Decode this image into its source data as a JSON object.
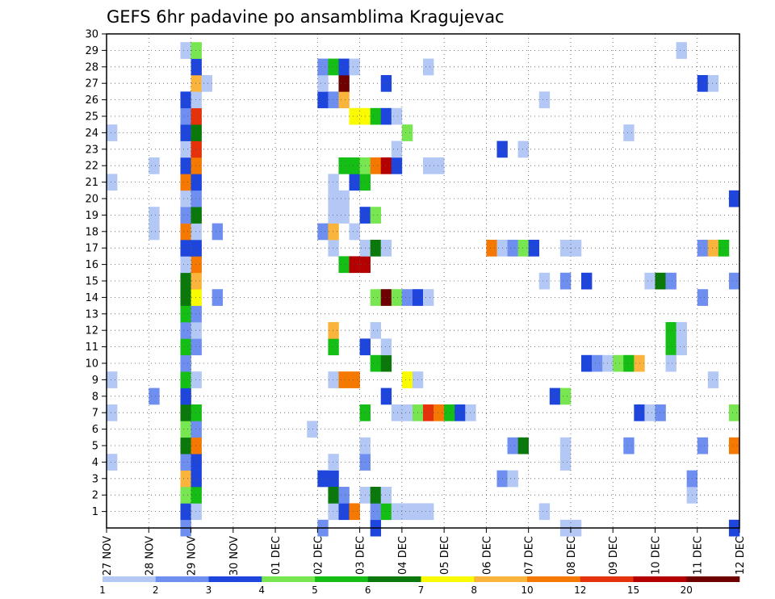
{
  "chart_data": {
    "type": "heatmap",
    "title": "GEFS 6hr padavine po ansamblima Kragujevac",
    "xlabel": "",
    "ylabel": "",
    "x_tick_labels": [
      "27 NOV",
      "28 NOV",
      "29 NOV",
      "30 NOV",
      "01 DEC",
      "02 DEC",
      "03 DEC",
      "04 DEC",
      "05 DEC",
      "06 DEC",
      "07 DEC",
      "08 DEC",
      "09 DEC",
      "10 DEC",
      "11 DEC",
      "12 DEC"
    ],
    "y_tick_labels": [
      "1",
      "2",
      "3",
      "4",
      "5",
      "6",
      "7",
      "8",
      "9",
      "10",
      "11",
      "12",
      "13",
      "14",
      "15",
      "16",
      "17",
      "18",
      "19",
      "20",
      "21",
      "22",
      "23",
      "24",
      "25",
      "26",
      "27",
      "28",
      "29",
      "30"
    ],
    "x_range_steps": [
      0,
      60
    ],
    "y_range_members": [
      0,
      30
    ],
    "grid": "dotted",
    "colorbar": {
      "labels": [
        "1",
        "2",
        "3",
        "4",
        "5",
        "6",
        "7",
        "8",
        "10",
        "12",
        "15",
        "20"
      ],
      "colors": [
        "#b4c8f5",
        "#6e8ff0",
        "#1e46dc",
        "#78e650",
        "#14be14",
        "#0a780a",
        "#fafa00",
        "#fab43c",
        "#f57800",
        "#e6320a",
        "#b40000",
        "#6e0000"
      ]
    },
    "cells": [
      [
        7,
        0,
        2
      ],
      [
        7,
        1,
        3
      ],
      [
        8,
        1,
        1
      ],
      [
        7,
        2,
        4
      ],
      [
        8,
        2,
        5
      ],
      [
        7,
        3,
        8
      ],
      [
        8,
        3,
        3
      ],
      [
        7,
        4,
        2
      ],
      [
        8,
        4,
        3
      ],
      [
        7,
        5,
        6
      ],
      [
        8,
        5,
        9
      ],
      [
        7,
        6,
        4
      ],
      [
        8,
        6,
        2
      ],
      [
        7,
        7,
        6
      ],
      [
        8,
        7,
        5
      ],
      [
        7,
        8,
        3
      ],
      [
        7,
        9,
        5
      ],
      [
        8,
        9,
        1
      ],
      [
        7,
        10,
        2
      ],
      [
        7,
        11,
        5
      ],
      [
        8,
        11,
        2
      ],
      [
        7,
        12,
        2
      ],
      [
        8,
        12,
        1
      ],
      [
        7,
        13,
        5
      ],
      [
        8,
        13,
        2
      ],
      [
        7,
        14,
        6
      ],
      [
        8,
        14,
        7
      ],
      [
        7,
        15,
        6
      ],
      [
        8,
        15,
        8
      ],
      [
        8,
        16,
        9
      ],
      [
        7,
        16,
        1
      ],
      [
        7,
        17,
        3
      ],
      [
        8,
        17,
        3
      ],
      [
        7,
        18,
        9
      ],
      [
        8,
        18,
        1
      ],
      [
        7,
        19,
        2
      ],
      [
        8,
        19,
        6
      ],
      [
        7,
        20,
        1
      ],
      [
        8,
        20,
        2
      ],
      [
        7,
        21,
        9
      ],
      [
        8,
        21,
        3
      ],
      [
        7,
        22,
        3
      ],
      [
        8,
        22,
        9
      ],
      [
        7,
        23,
        1
      ],
      [
        8,
        23,
        10
      ],
      [
        7,
        24,
        3
      ],
      [
        8,
        24,
        6
      ],
      [
        7,
        25,
        2
      ],
      [
        8,
        25,
        10
      ],
      [
        7,
        26,
        3
      ],
      [
        8,
        26,
        1
      ],
      [
        8,
        27,
        8
      ],
      [
        9,
        27,
        1
      ],
      [
        8,
        28,
        3
      ],
      [
        7,
        29,
        1
      ],
      [
        8,
        29,
        4
      ],
      [
        0,
        24,
        1
      ],
      [
        0,
        21,
        1
      ],
      [
        0,
        9,
        1
      ],
      [
        0,
        7,
        1
      ],
      [
        0,
        4,
        1
      ],
      [
        4,
        22,
        1
      ],
      [
        4,
        19,
        1
      ],
      [
        4,
        18,
        1
      ],
      [
        4,
        8,
        2
      ],
      [
        10,
        18,
        2
      ],
      [
        10,
        14,
        2
      ],
      [
        19,
        6,
        1
      ],
      [
        20,
        0,
        2
      ],
      [
        20,
        3,
        3
      ],
      [
        21,
        3,
        3
      ],
      [
        20,
        18,
        2
      ],
      [
        20,
        26,
        3
      ],
      [
        20,
        27,
        1
      ],
      [
        20,
        28,
        2
      ],
      [
        21,
        1,
        1
      ],
      [
        21,
        4,
        1
      ],
      [
        21,
        9,
        1
      ],
      [
        21,
        17,
        1
      ],
      [
        21,
        18,
        8
      ],
      [
        21,
        19,
        1
      ],
      [
        21,
        20,
        1
      ],
      [
        21,
        21,
        1
      ],
      [
        21,
        26,
        2
      ],
      [
        21,
        28,
        5
      ],
      [
        21,
        2,
        6
      ],
      [
        21,
        11,
        5
      ],
      [
        21,
        12,
        8
      ],
      [
        22,
        1,
        3
      ],
      [
        22,
        2,
        2
      ],
      [
        22,
        9,
        9
      ],
      [
        22,
        16,
        5
      ],
      [
        22,
        22,
        5
      ],
      [
        22,
        26,
        8
      ],
      [
        22,
        27,
        12
      ],
      [
        22,
        28,
        3
      ],
      [
        22,
        19,
        1
      ],
      [
        22,
        20,
        1
      ],
      [
        23,
        1,
        9
      ],
      [
        23,
        9,
        9
      ],
      [
        23,
        16,
        11
      ],
      [
        23,
        21,
        3
      ],
      [
        23,
        22,
        5
      ],
      [
        23,
        28,
        1
      ],
      [
        23,
        25,
        7
      ],
      [
        23,
        18,
        1
      ],
      [
        24,
        2,
        1
      ],
      [
        24,
        4,
        2
      ],
      [
        24,
        5,
        1
      ],
      [
        24,
        7,
        5
      ],
      [
        24,
        11,
        3
      ],
      [
        24,
        16,
        11
      ],
      [
        24,
        17,
        1
      ],
      [
        24,
        19,
        3
      ],
      [
        24,
        21,
        5
      ],
      [
        24,
        22,
        4
      ],
      [
        24,
        25,
        7
      ],
      [
        25,
        0,
        3
      ],
      [
        25,
        1,
        2
      ],
      [
        25,
        2,
        6
      ],
      [
        25,
        10,
        5
      ],
      [
        25,
        12,
        1
      ],
      [
        25,
        14,
        4
      ],
      [
        25,
        17,
        6
      ],
      [
        25,
        19,
        4
      ],
      [
        25,
        22,
        9
      ],
      [
        25,
        25,
        5
      ],
      [
        26,
        1,
        5
      ],
      [
        26,
        2,
        1
      ],
      [
        26,
        8,
        3
      ],
      [
        26,
        10,
        6
      ],
      [
        26,
        11,
        1
      ],
      [
        26,
        14,
        12
      ],
      [
        26,
        17,
        1
      ],
      [
        26,
        22,
        11
      ],
      [
        26,
        25,
        3
      ],
      [
        26,
        27,
        3
      ],
      [
        27,
        1,
        1
      ],
      [
        27,
        7,
        1
      ],
      [
        27,
        14,
        4
      ],
      [
        27,
        22,
        3
      ],
      [
        27,
        23,
        1
      ],
      [
        27,
        25,
        1
      ],
      [
        28,
        1,
        1
      ],
      [
        28,
        7,
        1
      ],
      [
        28,
        9,
        7
      ],
      [
        28,
        14,
        2
      ],
      [
        28,
        24,
        4
      ],
      [
        29,
        1,
        1
      ],
      [
        29,
        7,
        4
      ],
      [
        29,
        9,
        1
      ],
      [
        29,
        14,
        3
      ],
      [
        30,
        1,
        1
      ],
      [
        30,
        7,
        10
      ],
      [
        30,
        14,
        1
      ],
      [
        30,
        22,
        1
      ],
      [
        30,
        28,
        1
      ],
      [
        31,
        7,
        9
      ],
      [
        31,
        22,
        1
      ],
      [
        32,
        7,
        5
      ],
      [
        33,
        7,
        3
      ],
      [
        34,
        7,
        1
      ],
      [
        36,
        17,
        9
      ],
      [
        37,
        3,
        2
      ],
      [
        37,
        17,
        1
      ],
      [
        37,
        23,
        3
      ],
      [
        38,
        3,
        1
      ],
      [
        38,
        5,
        2
      ],
      [
        38,
        17,
        2
      ],
      [
        39,
        5,
        6
      ],
      [
        39,
        17,
        4
      ],
      [
        39,
        23,
        1
      ],
      [
        40,
        17,
        3
      ],
      [
        41,
        1,
        1
      ],
      [
        41,
        15,
        1
      ],
      [
        41,
        26,
        1
      ],
      [
        42,
        8,
        3
      ],
      [
        43,
        8,
        4
      ],
      [
        43,
        4,
        1
      ],
      [
        43,
        5,
        1
      ],
      [
        43,
        0,
        1
      ],
      [
        43,
        15,
        2
      ],
      [
        43,
        17,
        1
      ],
      [
        44,
        0,
        1
      ],
      [
        44,
        17,
        1
      ],
      [
        45,
        10,
        3
      ],
      [
        45,
        15,
        3
      ],
      [
        46,
        10,
        2
      ],
      [
        47,
        10,
        1
      ],
      [
        48,
        10,
        4
      ],
      [
        49,
        10,
        5
      ],
      [
        49,
        5,
        2
      ],
      [
        49,
        24,
        1
      ],
      [
        50,
        10,
        8
      ],
      [
        50,
        7,
        3
      ],
      [
        51,
        7,
        1
      ],
      [
        52,
        7,
        2
      ],
      [
        51,
        15,
        1
      ],
      [
        52,
        15,
        6
      ],
      [
        53,
        15,
        2
      ],
      [
        53,
        11,
        5
      ],
      [
        53,
        12,
        5
      ],
      [
        53,
        10,
        1
      ],
      [
        54,
        11,
        1
      ],
      [
        54,
        12,
        1
      ],
      [
        54,
        29,
        1
      ],
      [
        56,
        5,
        2
      ],
      [
        56,
        14,
        2
      ],
      [
        55,
        2,
        1
      ],
      [
        55,
        3,
        2
      ],
      [
        57,
        9,
        1
      ],
      [
        56,
        17,
        2
      ],
      [
        56,
        27,
        3
      ],
      [
        57,
        17,
        8
      ],
      [
        57,
        27,
        1
      ],
      [
        58,
        17,
        5
      ],
      [
        59,
        0,
        3
      ],
      [
        59,
        15,
        2
      ],
      [
        59,
        20,
        3
      ],
      [
        59,
        5,
        9
      ],
      [
        59,
        7,
        4
      ]
    ]
  }
}
